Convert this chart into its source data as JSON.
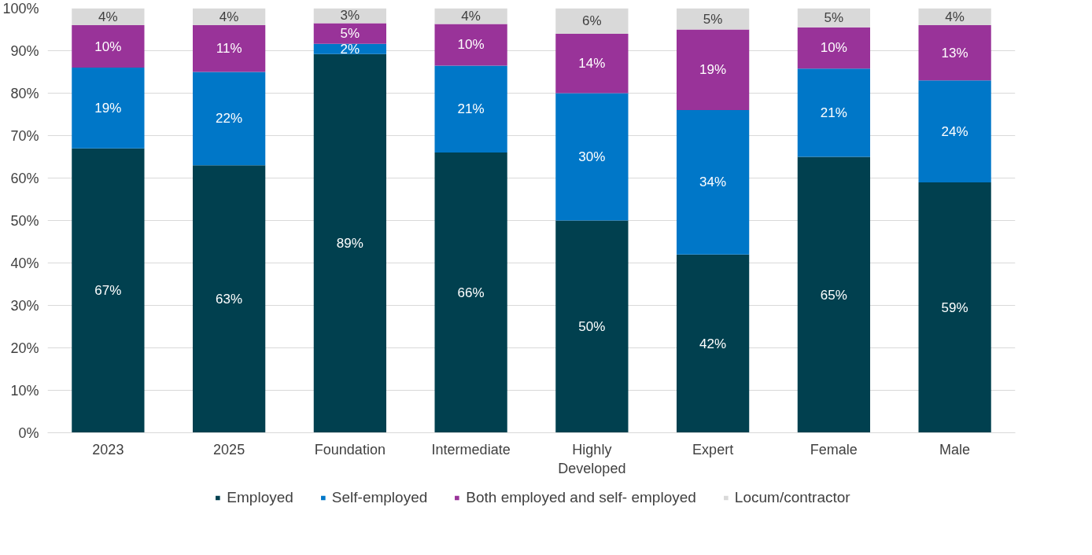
{
  "chart_data": {
    "type": "bar",
    "stacked": true,
    "categories": [
      "2023",
      "2025",
      "Foundation",
      "Intermediate",
      "Highly Developed",
      "Expert",
      "Female",
      "Male"
    ],
    "series": [
      {
        "name": "Employed",
        "color": "#01404f",
        "values": [
          67,
          63,
          89.2,
          66,
          50,
          42,
          65,
          59
        ],
        "value_labels": [
          "67%",
          "63%",
          "89%",
          "66%",
          "50%",
          "42%",
          "65%",
          "59%"
        ]
      },
      {
        "name": "Self-employed",
        "color": "#0077c8",
        "values": [
          19,
          22,
          2.4,
          20.5,
          30,
          34,
          20.8,
          24
        ],
        "value_labels": [
          "19%",
          "22%",
          "2%",
          "21%",
          "30%",
          "34%",
          "21%",
          "24%"
        ]
      },
      {
        "name": "Both employed and self- employed",
        "color": "#993399",
        "values": [
          10,
          11,
          4.9,
          9.8,
          14,
          19,
          9.7,
          13
        ],
        "value_labels": [
          "10%",
          "11%",
          "5%",
          "10%",
          "14%",
          "19%",
          "10%",
          "13%"
        ]
      },
      {
        "name": "Locum/contractor",
        "color": "#d9d9d9",
        "values": [
          4,
          4,
          3.5,
          3.7,
          6,
          5,
          4.5,
          4
        ],
        "value_labels": [
          "4%",
          "4%",
          "3%",
          "4%",
          "6%",
          "5%",
          "5%",
          "4%"
        ]
      }
    ],
    "ylim": [
      0,
      100
    ],
    "yticks": [
      {
        "value": 0,
        "label": "0%"
      },
      {
        "value": 10,
        "label": "10%"
      },
      {
        "value": 20,
        "label": "20%"
      },
      {
        "value": 30,
        "label": "30%"
      },
      {
        "value": 40,
        "label": "40%"
      },
      {
        "value": 50,
        "label": "50%"
      },
      {
        "value": 60,
        "label": "60%"
      },
      {
        "value": 70,
        "label": "70%"
      },
      {
        "value": 80,
        "label": "80%"
      },
      {
        "value": 90,
        "label": "90%"
      },
      {
        "value": 100,
        "label": "100%"
      }
    ],
    "grid": "y",
    "legend": "bottom"
  }
}
